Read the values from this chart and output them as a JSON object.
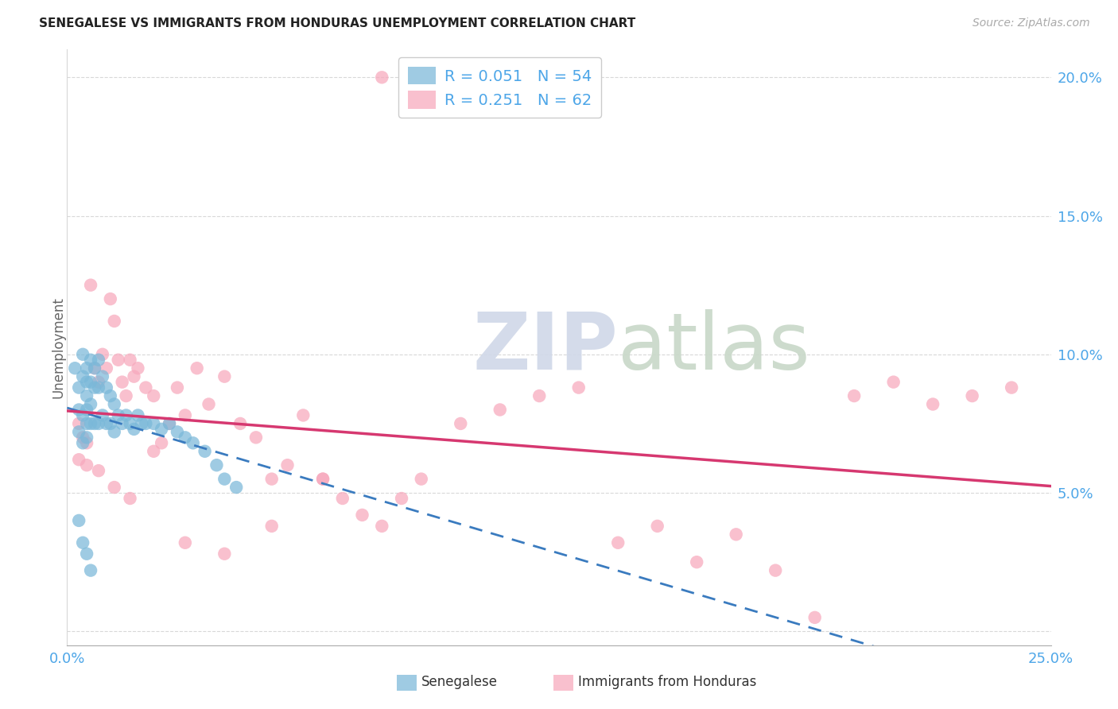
{
  "title": "SENEGALESE VS IMMIGRANTS FROM HONDURAS UNEMPLOYMENT CORRELATION CHART",
  "source": "Source: ZipAtlas.com",
  "ylabel": "Unemployment",
  "x_min": 0.0,
  "x_max": 0.25,
  "y_min": -0.005,
  "y_max": 0.21,
  "color_blue": "#7ab8d9",
  "color_pink": "#f7a8bc",
  "color_line_blue": "#3a7bbf",
  "color_line_pink": "#d63870",
  "color_tick": "#4da6e8",
  "color_grid": "#d8d8d8",
  "legend_R1": "0.051",
  "legend_N1": "54",
  "legend_R2": "0.251",
  "legend_N2": "62",
  "label1": "Senegalese",
  "label2": "Immigrants from Honduras",
  "watermark_zip": "ZIP",
  "watermark_atlas": "atlas",
  "senegalese_x": [
    0.002,
    0.003,
    0.003,
    0.003,
    0.004,
    0.004,
    0.004,
    0.004,
    0.005,
    0.005,
    0.005,
    0.005,
    0.005,
    0.005,
    0.006,
    0.006,
    0.006,
    0.006,
    0.007,
    0.007,
    0.007,
    0.008,
    0.008,
    0.008,
    0.009,
    0.009,
    0.01,
    0.01,
    0.011,
    0.011,
    0.012,
    0.012,
    0.013,
    0.014,
    0.015,
    0.016,
    0.017,
    0.018,
    0.019,
    0.02,
    0.022,
    0.024,
    0.026,
    0.028,
    0.03,
    0.032,
    0.035,
    0.038,
    0.04,
    0.043,
    0.003,
    0.004,
    0.005,
    0.006
  ],
  "senegalese_y": [
    0.095,
    0.088,
    0.08,
    0.072,
    0.1,
    0.092,
    0.078,
    0.068,
    0.095,
    0.09,
    0.085,
    0.08,
    0.075,
    0.07,
    0.098,
    0.09,
    0.082,
    0.075,
    0.095,
    0.088,
    0.075,
    0.098,
    0.088,
    0.075,
    0.092,
    0.078,
    0.088,
    0.075,
    0.085,
    0.075,
    0.082,
    0.072,
    0.078,
    0.075,
    0.078,
    0.075,
    0.073,
    0.078,
    0.075,
    0.075,
    0.075,
    0.073,
    0.075,
    0.072,
    0.07,
    0.068,
    0.065,
    0.06,
    0.055,
    0.052,
    0.04,
    0.032,
    0.028,
    0.022
  ],
  "honduras_x": [
    0.003,
    0.004,
    0.005,
    0.006,
    0.007,
    0.008,
    0.009,
    0.01,
    0.011,
    0.012,
    0.013,
    0.014,
    0.015,
    0.016,
    0.017,
    0.018,
    0.02,
    0.022,
    0.024,
    0.026,
    0.028,
    0.03,
    0.033,
    0.036,
    0.04,
    0.044,
    0.048,
    0.052,
    0.056,
    0.06,
    0.065,
    0.07,
    0.075,
    0.08,
    0.085,
    0.09,
    0.1,
    0.11,
    0.12,
    0.13,
    0.14,
    0.15,
    0.16,
    0.17,
    0.18,
    0.19,
    0.2,
    0.21,
    0.22,
    0.23,
    0.003,
    0.005,
    0.008,
    0.012,
    0.016,
    0.022,
    0.03,
    0.04,
    0.052,
    0.065,
    0.08,
    0.24
  ],
  "honduras_y": [
    0.075,
    0.07,
    0.068,
    0.125,
    0.095,
    0.09,
    0.1,
    0.095,
    0.12,
    0.112,
    0.098,
    0.09,
    0.085,
    0.098,
    0.092,
    0.095,
    0.088,
    0.085,
    0.068,
    0.075,
    0.088,
    0.078,
    0.095,
    0.082,
    0.092,
    0.075,
    0.07,
    0.055,
    0.06,
    0.078,
    0.055,
    0.048,
    0.042,
    0.038,
    0.048,
    0.055,
    0.075,
    0.08,
    0.085,
    0.088,
    0.032,
    0.038,
    0.025,
    0.035,
    0.022,
    0.005,
    0.085,
    0.09,
    0.082,
    0.085,
    0.062,
    0.06,
    0.058,
    0.052,
    0.048,
    0.065,
    0.032,
    0.028,
    0.038,
    0.055,
    0.2,
    0.088
  ]
}
